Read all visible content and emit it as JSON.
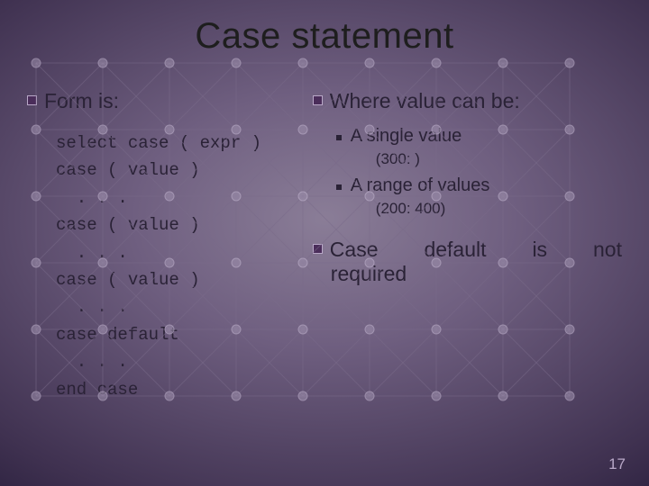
{
  "title": "Case statement",
  "left": {
    "heading": "Form is:",
    "code": "select case ( expr )\ncase ( value )\n  . . .\ncase ( value )\n  . . .\ncase ( value )\n  . . .\ncase default\n  . . .\nend case"
  },
  "right": {
    "heading": "Where value can be:",
    "items": [
      {
        "label": "A single value",
        "example": "(300: )"
      },
      {
        "label": "A range of values",
        "example": "(200: 400)"
      }
    ],
    "note_words": [
      "Case",
      "default",
      "is",
      "not"
    ],
    "note_line2": "required"
  },
  "page_number": "17",
  "grid": {
    "cols": 9,
    "rows": 6,
    "xstep": 74,
    "ystep": 74,
    "node_r": 5,
    "line_color": "#7a6b8a",
    "node_fill": "#9f91ae",
    "node_stroke": "#c9bcd6"
  }
}
